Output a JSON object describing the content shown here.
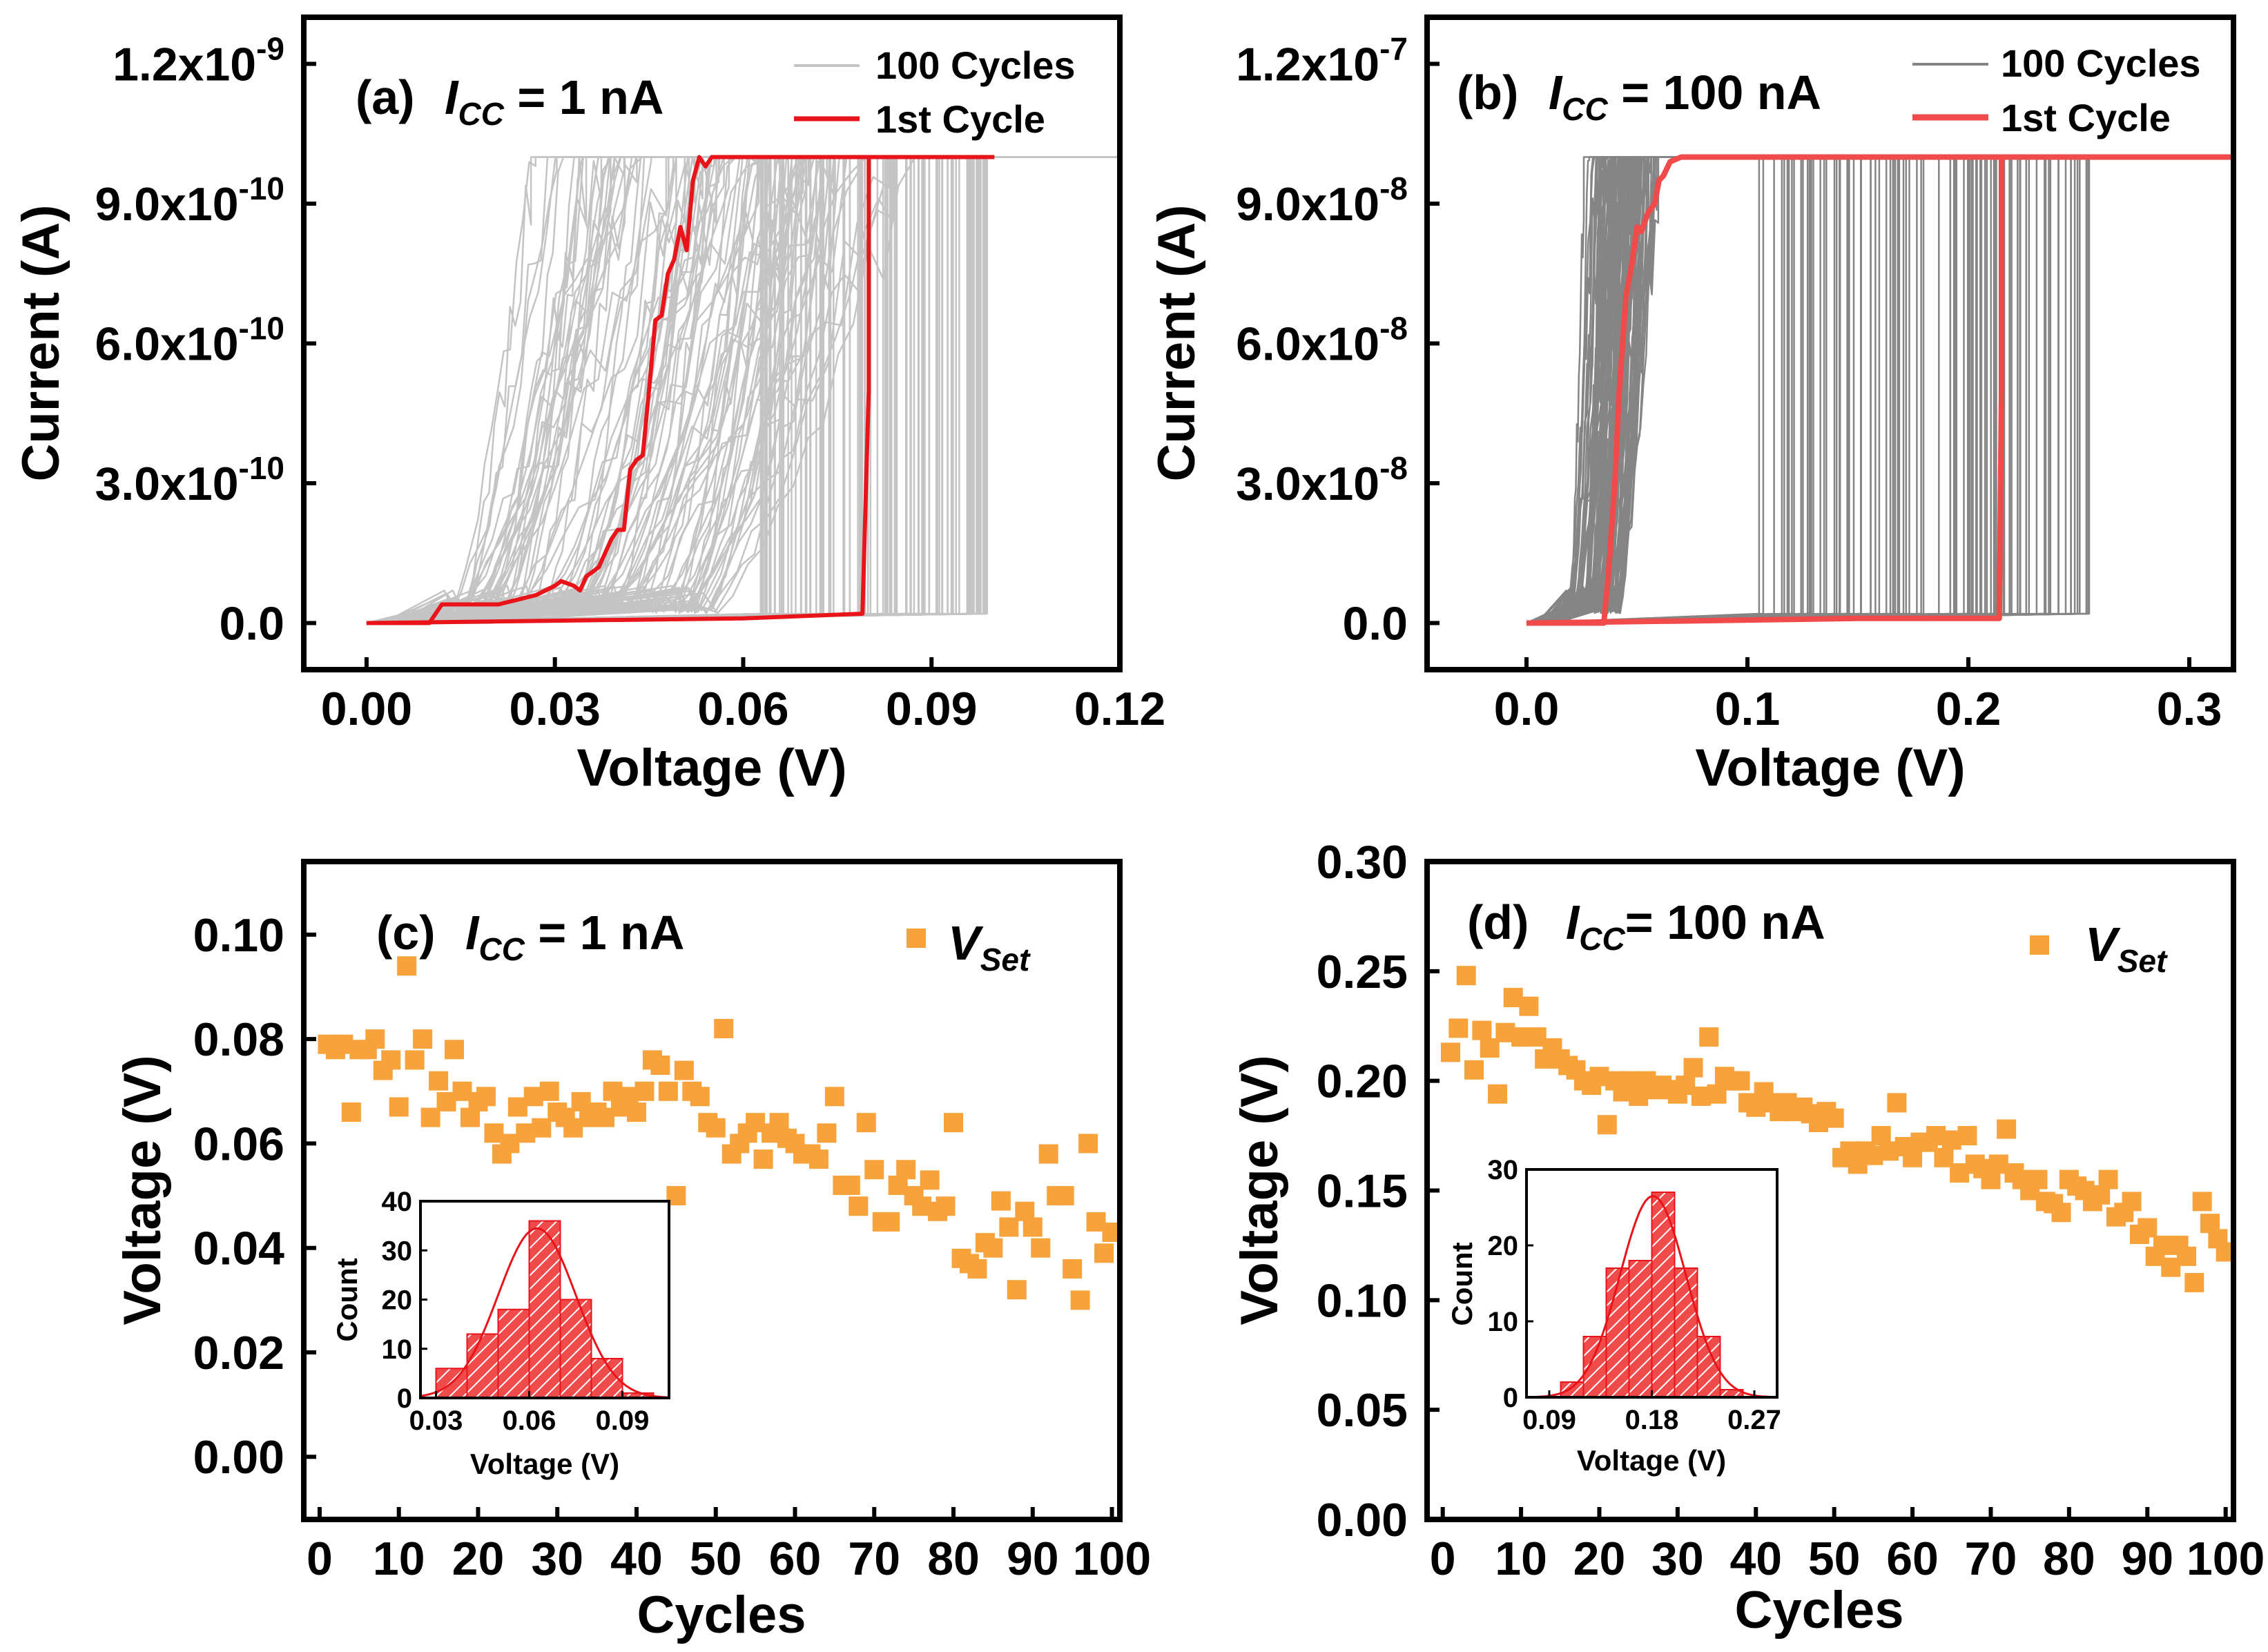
{
  "colors": {
    "cycles_a": "#c4c4c4",
    "cycles_b": "#858585",
    "first_cycle_a": "#e8141a",
    "first_cycle_b": "#f04a4a",
    "vset_marker": "#f7a23a",
    "hist_fill": "#ef4b4b"
  },
  "chart_data": [
    {
      "panel": "a",
      "type": "line",
      "label_prefix": "(a)",
      "label_icc": "I",
      "label_icc_sub": "CC",
      "label_value": " = 1 nA",
      "xlabel": "Voltage (V)",
      "ylabel": "Current (A)",
      "xlim": [
        -0.01,
        0.12
      ],
      "ylim": [
        -1e-10,
        1.3e-09
      ],
      "xticks": [
        0.0,
        0.03,
        0.06,
        0.09,
        0.12
      ],
      "xtick_labels": [
        "0.00",
        "0.03",
        "0.06",
        "0.09",
        "0.12"
      ],
      "yticks": [
        0.0,
        3e-10,
        6e-10,
        9e-10,
        1.2e-09
      ],
      "ytick_labels": [
        {
          "mant": "0.0",
          "exp": ""
        },
        {
          "mant": "3.0x10",
          "exp": "-10"
        },
        {
          "mant": "6.0x10",
          "exp": "-10"
        },
        {
          "mant": "9.0x10",
          "exp": "-10"
        },
        {
          "mant": "1.2x10",
          "exp": "-9"
        }
      ],
      "legend": [
        "100 Cycles",
        "1st  Cycle"
      ],
      "compliance": 1e-09,
      "sweep_max": 0.12,
      "num_cycles": 100,
      "first_cycle_sweep": {
        "x": [
          0.0,
          0.01,
          0.012,
          0.015,
          0.018,
          0.021,
          0.024,
          0.027,
          0.03,
          0.031,
          0.033,
          0.034,
          0.035,
          0.036,
          0.037,
          0.038,
          0.039,
          0.04,
          0.041,
          0.042,
          0.043,
          0.044,
          0.045,
          0.046,
          0.047,
          0.048,
          0.049,
          0.05,
          0.051,
          0.052,
          0.053,
          0.054,
          0.055,
          0.056,
          0.057,
          0.06,
          0.07,
          0.08,
          0.09,
          0.1
        ],
        "y": [
          0.0,
          0.0,
          4e-11,
          4e-11,
          4e-11,
          4e-11,
          5e-11,
          6e-11,
          8e-11,
          9e-11,
          8e-11,
          7e-11,
          1e-10,
          1.1e-10,
          1.2e-10,
          1.5e-10,
          1.8e-10,
          2e-10,
          2e-10,
          3.3e-10,
          3.5e-10,
          3.6e-10,
          5e-10,
          6.5e-10,
          6.6e-10,
          7.5e-10,
          7.8e-10,
          8.5e-10,
          8e-10,
          9.5e-10,
          1e-09,
          9.8e-10,
          1e-09,
          1e-09,
          1e-09,
          1e-09,
          1e-09,
          1e-09,
          1e-09,
          1e-09
        ]
      },
      "first_cycle_return": {
        "x": [
          0.1,
          0.08,
          0.08,
          0.079,
          0.06,
          0.03,
          0.0
        ],
        "y": [
          1e-09,
          1e-09,
          5e-10,
          2e-11,
          1e-11,
          5e-12,
          0.0
        ]
      }
    },
    {
      "panel": "b",
      "type": "line",
      "label_prefix": "(b)",
      "label_icc": "I",
      "label_icc_sub": "CC",
      "label_value": " = 100 nA",
      "xlabel": "Voltage (V)",
      "ylabel": "Current (A)",
      "xlim": [
        -0.045,
        0.32
      ],
      "ylim": [
        -1e-08,
        1.3e-07
      ],
      "xticks": [
        0.0,
        0.1,
        0.2,
        0.3
      ],
      "xtick_labels": [
        "0.0",
        "0.1",
        "0.2",
        "0.3"
      ],
      "yticks": [
        0.0,
        3e-08,
        6e-08,
        9e-08,
        1.2e-07
      ],
      "ytick_labels": [
        {
          "mant": "0.0",
          "exp": ""
        },
        {
          "mant": "3.0x10",
          "exp": "-8"
        },
        {
          "mant": "6.0x10",
          "exp": "-8"
        },
        {
          "mant": "9.0x10",
          "exp": "-8"
        },
        {
          "mant": "1.2x10",
          "exp": "-7"
        }
      ],
      "legend": [
        "100 Cycles",
        "1st Cycle"
      ],
      "compliance": 1e-07,
      "sweep_max": 0.32,
      "num_cycles": 100,
      "first_cycle_sweep": {
        "x": [
          0.0,
          0.02,
          0.035,
          0.037,
          0.04,
          0.042,
          0.045,
          0.048,
          0.05,
          0.052,
          0.055,
          0.058,
          0.06,
          0.062,
          0.065,
          0.07,
          0.1,
          0.2,
          0.32
        ],
        "y": [
          0.0,
          0.0,
          0.0,
          1e-08,
          3e-08,
          5e-08,
          7e-08,
          7.8e-08,
          8.5e-08,
          8.4e-08,
          8.8e-08,
          9e-08,
          9.5e-08,
          9.6e-08,
          9.9e-08,
          1e-07,
          1e-07,
          1e-07,
          1e-07
        ]
      },
      "first_cycle_return": {
        "x": [
          0.32,
          0.215,
          0.215,
          0.214,
          0.15,
          0.08,
          0.0
        ],
        "y": [
          1e-07,
          1e-07,
          5e-08,
          1e-09,
          1e-09,
          5e-10,
          0.0
        ]
      }
    },
    {
      "panel": "c",
      "type": "scatter",
      "label_prefix": "(c)",
      "label_icc": "I",
      "label_icc_sub": "CC",
      "label_value": " = 1 nA",
      "xlabel": "Cycles",
      "ylabel": "Voltage (V)",
      "xlim": [
        -2,
        101
      ],
      "ylim": [
        -0.012,
        0.114
      ],
      "xticks": [
        0,
        10,
        20,
        30,
        40,
        50,
        60,
        70,
        80,
        90,
        100
      ],
      "xtick_labels": [
        "0",
        "10",
        "20",
        "30",
        "40",
        "50",
        "60",
        "70",
        "80",
        "90",
        "100"
      ],
      "yticks": [
        0.0,
        0.02,
        0.04,
        0.06,
        0.08,
        0.1
      ],
      "ytick_labels": [
        "0.00",
        "0.02",
        "0.04",
        "0.06",
        "0.08",
        "0.10"
      ],
      "legend": {
        "main": "V",
        "sub": "Set"
      },
      "x": [
        1,
        2,
        3,
        4,
        5,
        6,
        7,
        8,
        9,
        10,
        11,
        12,
        13,
        14,
        15,
        16,
        17,
        18,
        19,
        20,
        21,
        22,
        23,
        24,
        25,
        26,
        27,
        28,
        29,
        30,
        31,
        32,
        33,
        34,
        35,
        36,
        37,
        38,
        39,
        40,
        41,
        42,
        43,
        44,
        45,
        46,
        47,
        48,
        49,
        50,
        51,
        52,
        53,
        54,
        55,
        56,
        57,
        58,
        59,
        60,
        61,
        62,
        63,
        64,
        65,
        66,
        67,
        68,
        69,
        70,
        71,
        72,
        73,
        74,
        75,
        76,
        77,
        78,
        79,
        80,
        81,
        82,
        83,
        84,
        85,
        86,
        87,
        88,
        89,
        90,
        91,
        92,
        93,
        94,
        95,
        96,
        97,
        98,
        99,
        100
      ],
      "y": [
        0.079,
        0.078,
        0.079,
        0.066,
        0.078,
        0.078,
        0.08,
        0.074,
        0.076,
        0.067,
        0.094,
        0.076,
        0.08,
        0.065,
        0.072,
        0.068,
        0.078,
        0.07,
        0.065,
        0.068,
        0.069,
        0.062,
        0.058,
        0.06,
        0.067,
        0.062,
        0.069,
        0.063,
        0.07,
        0.066,
        0.065,
        0.063,
        0.068,
        0.065,
        0.066,
        0.065,
        0.07,
        0.067,
        0.069,
        0.066,
        0.07,
        0.076,
        0.075,
        0.07,
        0.05,
        0.074,
        0.07,
        0.069,
        0.064,
        0.063,
        0.082,
        0.058,
        0.06,
        0.062,
        0.064,
        0.057,
        0.062,
        0.064,
        0.061,
        0.06,
        0.058,
        0.058,
        0.057,
        0.062,
        0.069,
        0.052,
        0.052,
        0.048,
        0.064,
        0.055,
        0.045,
        0.045,
        0.052,
        0.055,
        0.05,
        0.048,
        0.053,
        0.047,
        0.048,
        0.064,
        0.038,
        0.037,
        0.036,
        0.041,
        0.04,
        0.049,
        0.044,
        0.032,
        0.047,
        0.044,
        0.04,
        0.058,
        0.05,
        0.05,
        0.036,
        0.03,
        0.06,
        0.045,
        0.039,
        0.043
      ]
    },
    {
      "panel": "d",
      "type": "scatter",
      "label_prefix": "(d)",
      "label_icc": "I",
      "label_icc_sub": "CC",
      "label_value": "= 100 nA",
      "xlabel": "Cycles",
      "ylabel": "Voltage (V)",
      "xlim": [
        -2,
        101
      ],
      "ylim": [
        0,
        0.3
      ],
      "xticks": [
        0,
        10,
        20,
        30,
        40,
        50,
        60,
        70,
        80,
        90,
        100
      ],
      "xtick_labels": [
        "0",
        "10",
        "20",
        "30",
        "40",
        "50",
        "60",
        "70",
        "80",
        "90",
        "100"
      ],
      "yticks": [
        0.0,
        0.05,
        0.1,
        0.15,
        0.2,
        0.25,
        0.3
      ],
      "ytick_labels": [
        "0.00",
        "0.05",
        "0.10",
        "0.15",
        "0.20",
        "0.25",
        "0.30"
      ],
      "legend": {
        "main": "V",
        "sub": "Set"
      },
      "x": [
        1,
        2,
        3,
        4,
        5,
        6,
        7,
        8,
        9,
        10,
        11,
        12,
        13,
        14,
        15,
        16,
        17,
        18,
        19,
        20,
        21,
        22,
        23,
        24,
        25,
        26,
        27,
        28,
        29,
        30,
        31,
        32,
        33,
        34,
        35,
        36,
        37,
        38,
        39,
        40,
        41,
        42,
        43,
        44,
        45,
        46,
        47,
        48,
        49,
        50,
        51,
        52,
        53,
        54,
        55,
        56,
        57,
        58,
        59,
        60,
        61,
        62,
        63,
        64,
        65,
        66,
        67,
        68,
        69,
        70,
        71,
        72,
        73,
        74,
        75,
        76,
        77,
        78,
        79,
        80,
        81,
        82,
        83,
        84,
        85,
        86,
        87,
        88,
        89,
        90,
        91,
        92,
        93,
        94,
        95,
        96,
        97,
        98,
        99,
        100
      ],
      "y": [
        0.213,
        0.224,
        0.248,
        0.205,
        0.223,
        0.215,
        0.194,
        0.222,
        0.238,
        0.22,
        0.234,
        0.22,
        0.21,
        0.215,
        0.21,
        0.207,
        0.205,
        0.2,
        0.198,
        0.202,
        0.18,
        0.2,
        0.195,
        0.2,
        0.193,
        0.2,
        0.196,
        0.198,
        0.196,
        0.194,
        0.198,
        0.206,
        0.193,
        0.22,
        0.194,
        0.202,
        0.2,
        0.2,
        0.19,
        0.188,
        0.195,
        0.19,
        0.186,
        0.19,
        0.186,
        0.188,
        0.185,
        0.181,
        0.186,
        0.183,
        0.165,
        0.168,
        0.162,
        0.168,
        0.166,
        0.175,
        0.168,
        0.19,
        0.17,
        0.165,
        0.172,
        0.172,
        0.175,
        0.165,
        0.173,
        0.158,
        0.175,
        0.162,
        0.16,
        0.155,
        0.162,
        0.178,
        0.158,
        0.155,
        0.15,
        0.155,
        0.145,
        0.144,
        0.14,
        0.155,
        0.152,
        0.15,
        0.145,
        0.148,
        0.155,
        0.138,
        0.14,
        0.145,
        0.13,
        0.133,
        0.12,
        0.125,
        0.115,
        0.125,
        0.12,
        0.108,
        0.145,
        0.135,
        0.128,
        0.122
      ]
    }
  ],
  "insets": [
    {
      "panel": "c",
      "type": "histogram",
      "xlabel": "Voltage (V)",
      "ylabel": "Count",
      "xlim": [
        0.025,
        0.105
      ],
      "ylim": [
        0,
        40
      ],
      "xticks": [
        0.03,
        0.06,
        0.09
      ],
      "xtick_labels": [
        "0.03",
        "0.06",
        "0.09"
      ],
      "yticks": [
        0,
        10,
        20,
        30,
        40
      ],
      "ytick_labels": [
        "0",
        "10",
        "20",
        "30",
        "40"
      ],
      "bin_edges": [
        0.03,
        0.04,
        0.05,
        0.06,
        0.07,
        0.08,
        0.09,
        0.1
      ],
      "counts": [
        6,
        13,
        18,
        36,
        20,
        8,
        1
      ],
      "fit": {
        "mean": 0.0625,
        "sd": 0.0125,
        "peak": 34.5
      }
    },
    {
      "panel": "d",
      "type": "histogram",
      "xlabel": "Voltage (V)",
      "ylabel": "Count",
      "xlim": [
        0.07,
        0.29
      ],
      "ylim": [
        0,
        30
      ],
      "xticks": [
        0.09,
        0.18,
        0.27
      ],
      "xtick_labels": [
        "0.09",
        "0.18",
        "0.27"
      ],
      "yticks": [
        0,
        10,
        20,
        30
      ],
      "ytick_labels": [
        "0",
        "10",
        "20",
        "30"
      ],
      "bin_edges": [
        0.1,
        0.12,
        0.14,
        0.16,
        0.18,
        0.2,
        0.22,
        0.24,
        0.26
      ],
      "counts": [
        2,
        8,
        17,
        18,
        27,
        17,
        8,
        1
      ],
      "fit": {
        "mean": 0.181,
        "sd": 0.029,
        "peak": 26.5
      }
    }
  ]
}
